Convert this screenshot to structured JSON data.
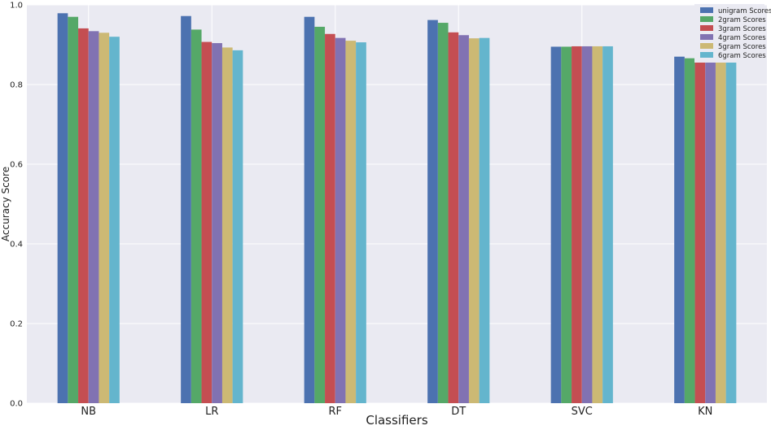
{
  "chart_data": {
    "type": "bar",
    "title": "",
    "xlabel": "Classifiers",
    "ylabel": "Accuracy Score",
    "ylim": [
      0,
      1.0
    ],
    "yticks": [
      "0.0",
      "0.2",
      "0.4",
      "0.6",
      "0.8",
      "1.0"
    ],
    "grid": true,
    "legend_position": "top-right",
    "categories": [
      "NB",
      "LR",
      "RF",
      "DT",
      "SVC",
      "KN"
    ],
    "series": [
      {
        "name": "unigram Scores",
        "color": "#4c72b0",
        "values": [
          0.979,
          0.972,
          0.97,
          0.962,
          0.895,
          0.87
        ]
      },
      {
        "name": "2gram Scores",
        "color": "#55a868",
        "values": [
          0.97,
          0.938,
          0.945,
          0.955,
          0.895,
          0.866
        ]
      },
      {
        "name": "3gram Scores",
        "color": "#c44e52",
        "values": [
          0.941,
          0.907,
          0.927,
          0.931,
          0.896,
          0.866
        ]
      },
      {
        "name": "4gram Scores",
        "color": "#8172b2",
        "values": [
          0.934,
          0.904,
          0.917,
          0.924,
          0.896,
          0.866
        ]
      },
      {
        "name": "5gram Scores",
        "color": "#ccb974",
        "values": [
          0.93,
          0.893,
          0.91,
          0.916,
          0.896,
          0.866
        ]
      },
      {
        "name": "6gram Scores",
        "color": "#64b5cd",
        "values": [
          0.92,
          0.886,
          0.906,
          0.917,
          0.896,
          0.866
        ]
      }
    ]
  },
  "colors": {
    "plot_background": "#eaeaf2",
    "grid": "#ffffff",
    "legend_background": "#eaeaf2"
  }
}
